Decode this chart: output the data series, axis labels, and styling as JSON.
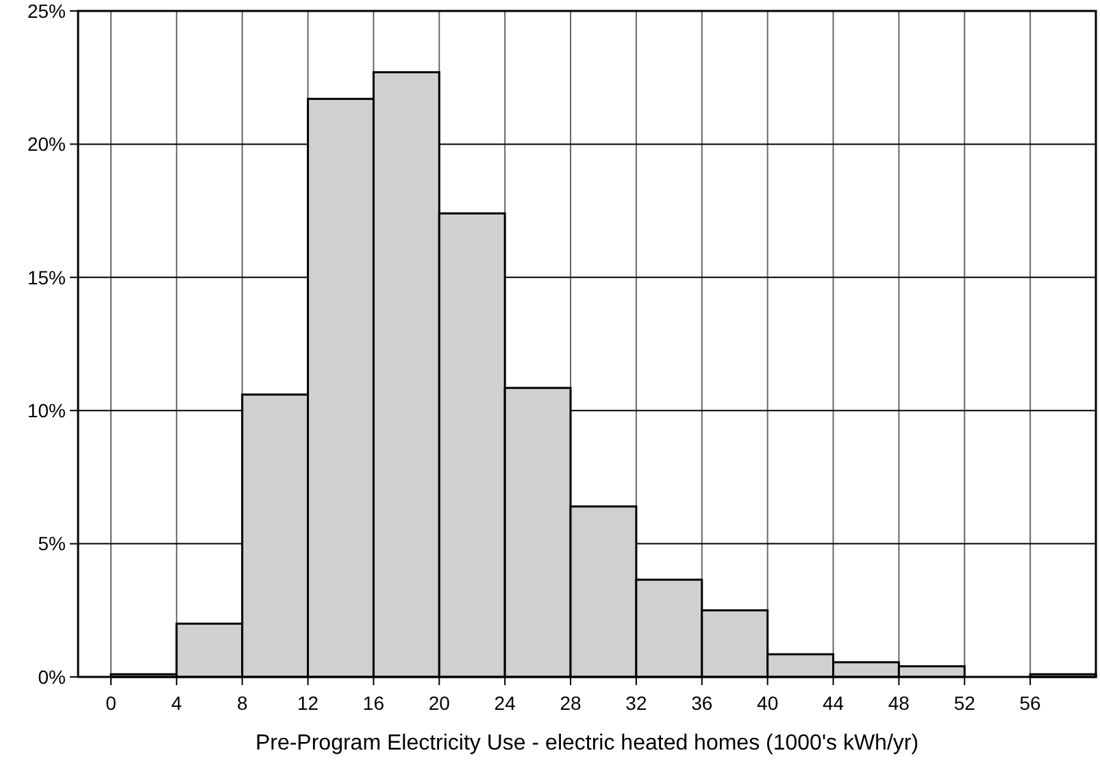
{
  "chart_data": {
    "type": "histogram",
    "xlabel": "Pre-Program Electricity Use - electric heated homes (1000's kWh/yr)",
    "bins": [
      0,
      4,
      8,
      12,
      16,
      20,
      24,
      28,
      32,
      36,
      40,
      44,
      48,
      52,
      56,
      60
    ],
    "values": [
      0.1,
      2.0,
      10.6,
      21.7,
      22.7,
      17.4,
      10.85,
      6.4,
      3.65,
      2.5,
      0.85,
      0.55,
      0.4,
      0,
      0.1
    ],
    "color": "#d0d0d0",
    "xlim": [
      -2,
      60
    ],
    "xticks": [
      0,
      4,
      8,
      12,
      16,
      20,
      24,
      28,
      32,
      36,
      40,
      44,
      48,
      52,
      56
    ],
    "ylim": [
      0,
      25
    ],
    "yticks": [
      {
        "value": 0,
        "label": "0%"
      },
      {
        "value": 5,
        "label": "5%"
      },
      {
        "value": 10,
        "label": "10%"
      },
      {
        "value": 15,
        "label": "15%"
      },
      {
        "value": 20,
        "label": "20%"
      },
      {
        "value": 25,
        "label": "25%"
      }
    ],
    "grid": true
  }
}
